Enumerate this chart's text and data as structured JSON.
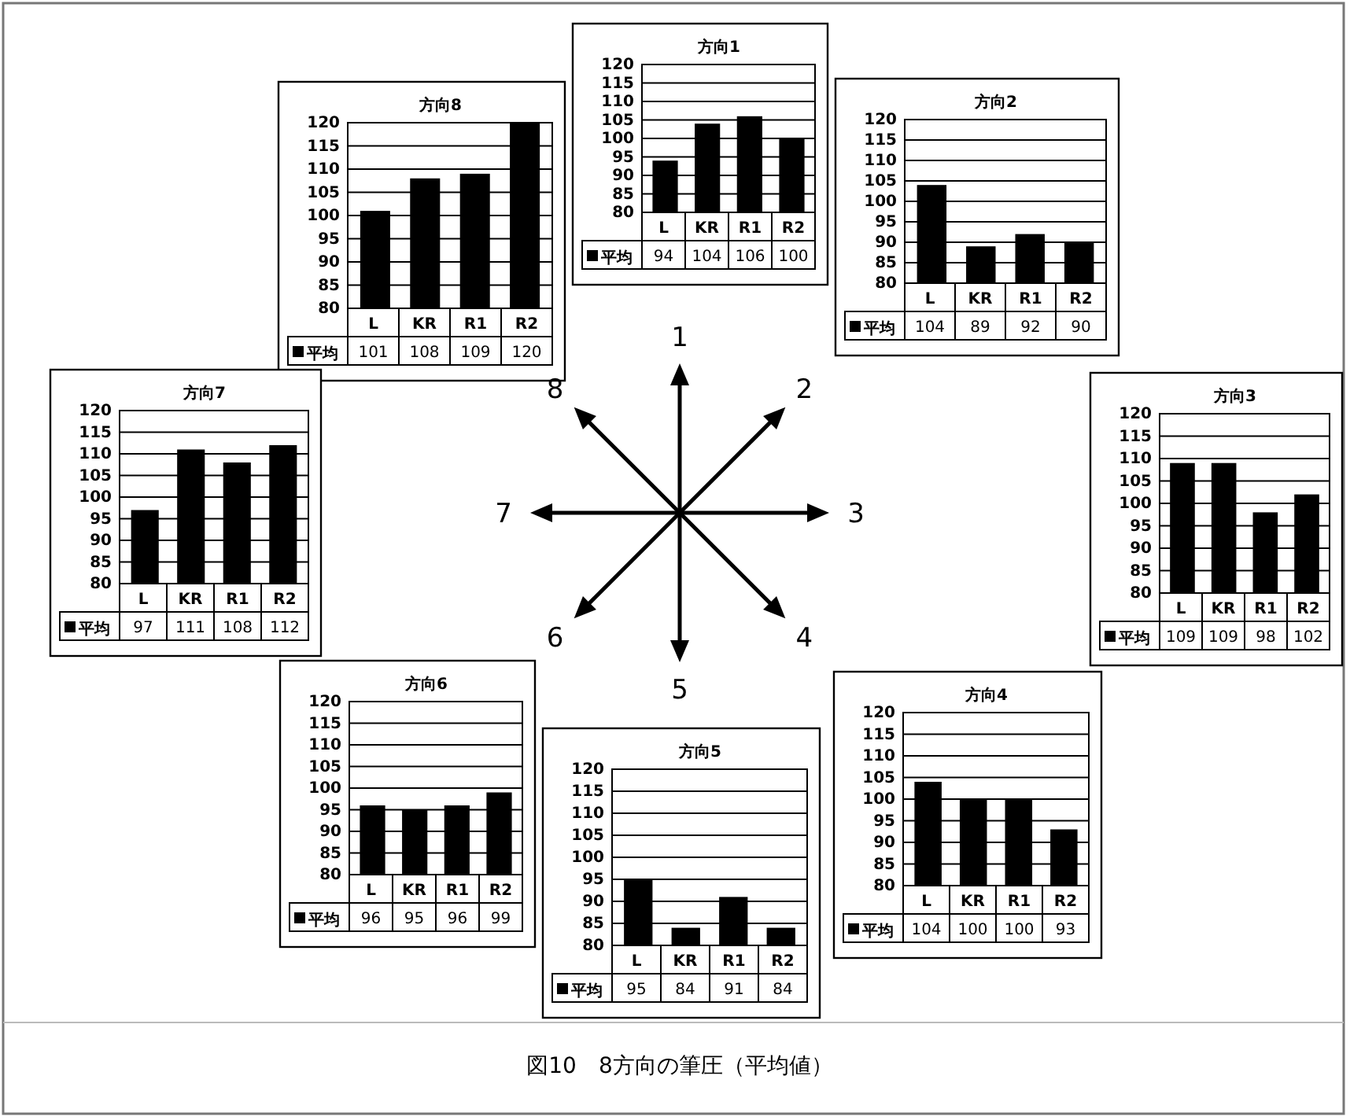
{
  "chart_data": [
    {
      "type": "bar",
      "title": "方向1",
      "categories": [
        "L",
        "KR",
        "R1",
        "R2"
      ],
      "series": [
        {
          "name": "平均",
          "color": "#000000",
          "values": [
            94,
            104,
            106,
            100
          ]
        }
      ],
      "ylim": [
        80,
        120
      ],
      "yticks": [
        80,
        85,
        90,
        95,
        100,
        105,
        110,
        115,
        120
      ],
      "grid": "y",
      "legend": "bottom",
      "data_labels": true
    },
    {
      "type": "bar",
      "title": "方向8",
      "categories": [
        "L",
        "KR",
        "R1",
        "R2"
      ],
      "series": [
        {
          "name": "平均",
          "color": "#000000",
          "values": [
            101,
            108,
            109,
            120
          ]
        }
      ],
      "ylim": [
        80,
        120
      ],
      "yticks": [
        80,
        85,
        90,
        95,
        100,
        105,
        110,
        115,
        120
      ],
      "grid": "y",
      "legend": "bottom",
      "data_labels": true
    },
    {
      "type": "bar",
      "title": "方向2",
      "categories": [
        "L",
        "KR",
        "R1",
        "R2"
      ],
      "series": [
        {
          "name": "平均",
          "color": "#000000",
          "values": [
            104,
            89,
            92,
            90
          ]
        }
      ],
      "ylim": [
        80,
        120
      ],
      "yticks": [
        80,
        85,
        90,
        95,
        100,
        105,
        110,
        115,
        120
      ],
      "grid": "y",
      "legend": "bottom",
      "data_labels": true
    },
    {
      "type": "bar",
      "title": "方向7",
      "categories": [
        "L",
        "KR",
        "R1",
        "R2"
      ],
      "series": [
        {
          "name": "平均",
          "color": "#000000",
          "values": [
            97,
            111,
            108,
            112
          ]
        }
      ],
      "ylim": [
        80,
        120
      ],
      "yticks": [
        80,
        85,
        90,
        95,
        100,
        105,
        110,
        115,
        120
      ],
      "grid": "y",
      "legend": "bottom",
      "data_labels": true
    },
    {
      "type": "bar",
      "title": "方向3",
      "categories": [
        "L",
        "KR",
        "R1",
        "R2"
      ],
      "series": [
        {
          "name": "平均",
          "color": "#000000",
          "values": [
            109,
            109,
            98,
            102
          ]
        }
      ],
      "ylim": [
        80,
        120
      ],
      "yticks": [
        80,
        85,
        90,
        95,
        100,
        105,
        110,
        115,
        120
      ],
      "grid": "y",
      "legend": "bottom",
      "data_labels": true
    },
    {
      "type": "bar",
      "title": "方向6",
      "categories": [
        "L",
        "KR",
        "R1",
        "R2"
      ],
      "series": [
        {
          "name": "平均",
          "color": "#000000",
          "values": [
            96,
            95,
            96,
            99
          ]
        }
      ],
      "ylim": [
        80,
        120
      ],
      "yticks": [
        80,
        85,
        90,
        95,
        100,
        105,
        110,
        115,
        120
      ],
      "grid": "y",
      "legend": "bottom",
      "data_labels": true
    },
    {
      "type": "bar",
      "title": "方向4",
      "categories": [
        "L",
        "KR",
        "R1",
        "R2"
      ],
      "series": [
        {
          "name": "平均",
          "color": "#000000",
          "values": [
            104,
            100,
            100,
            93
          ]
        }
      ],
      "ylim": [
        80,
        120
      ],
      "yticks": [
        80,
        85,
        90,
        95,
        100,
        105,
        110,
        115,
        120
      ],
      "grid": "y",
      "legend": "bottom",
      "data_labels": true
    },
    {
      "type": "bar",
      "title": "方向5",
      "categories": [
        "L",
        "KR",
        "R1",
        "R2"
      ],
      "series": [
        {
          "name": "平均",
          "color": "#000000",
          "values": [
            95,
            84,
            91,
            84
          ]
        }
      ],
      "ylim": [
        80,
        120
      ],
      "yticks": [
        80,
        85,
        90,
        95,
        100,
        105,
        110,
        115,
        120
      ],
      "grid": "y",
      "legend": "bottom",
      "data_labels": true
    },
    {
      "type": "other",
      "annotations": [
        "1",
        "2",
        "3",
        "4",
        "5",
        "6",
        "7",
        "8",
        "図10　8方向の筆圧（平均値）"
      ]
    }
  ]
}
